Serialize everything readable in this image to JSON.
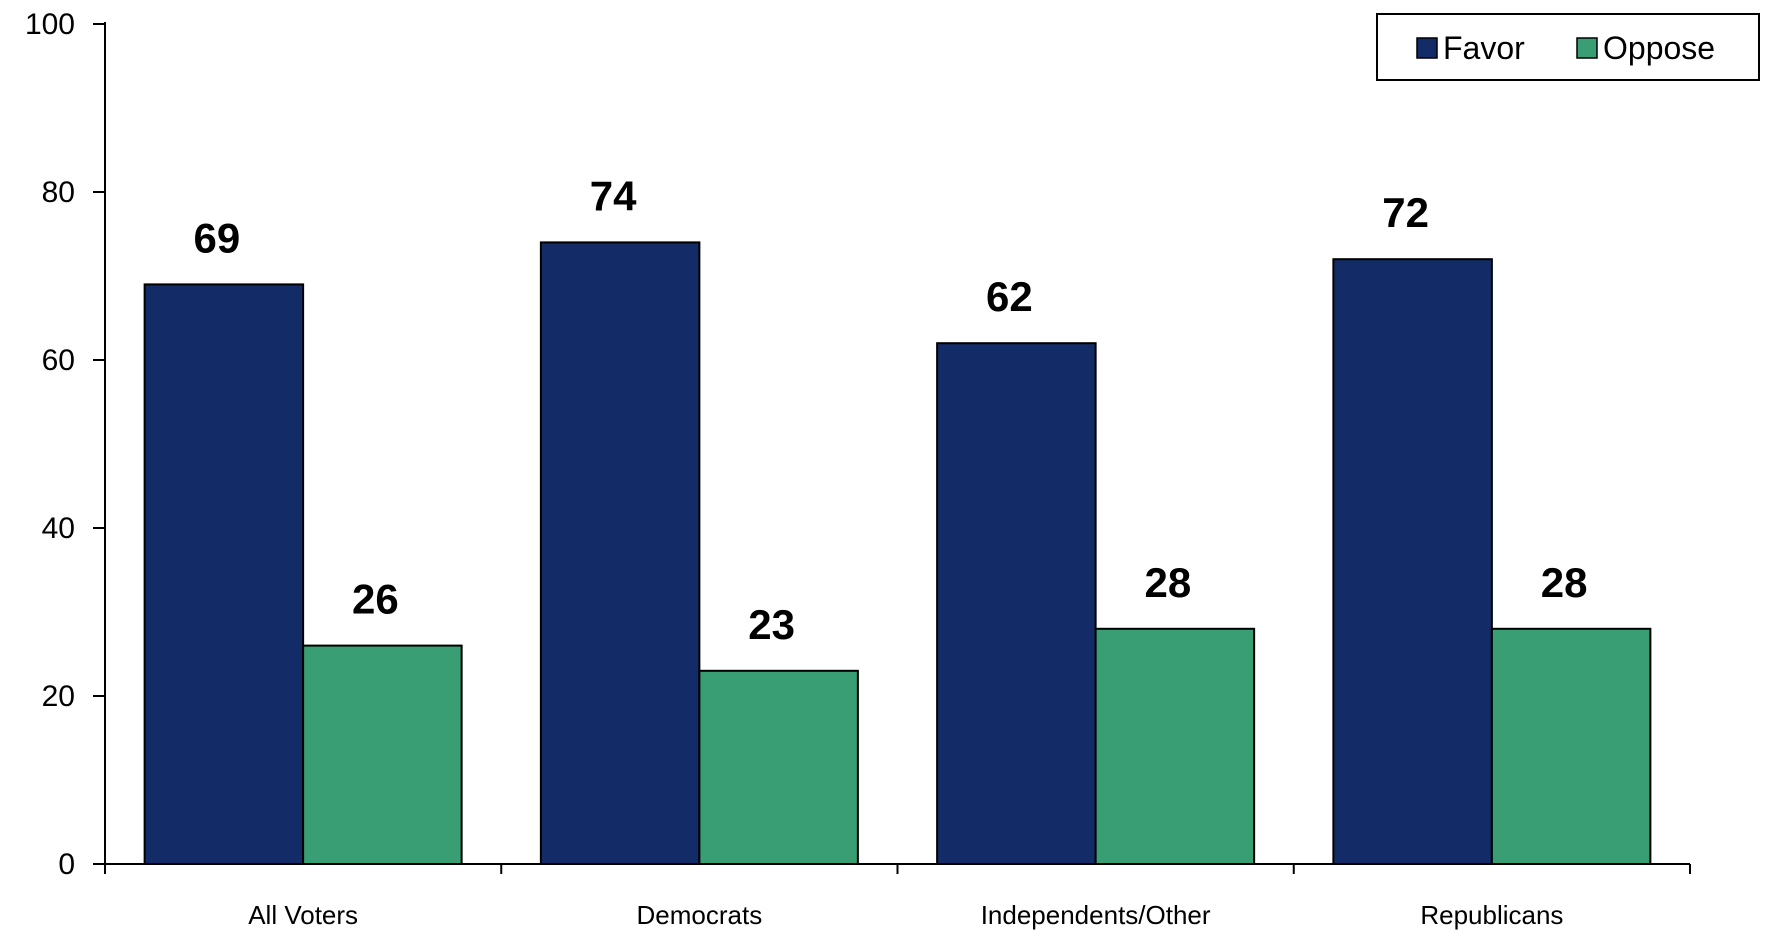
{
  "chart_data": {
    "type": "bar",
    "title": "",
    "xlabel": "",
    "ylabel": "",
    "categories": [
      "All Voters",
      "Democrats",
      "Independents/Other",
      "Republicans"
    ],
    "series": [
      {
        "name": "Favor",
        "color": "#132c67",
        "values": [
          69,
          74,
          62,
          72
        ]
      },
      {
        "name": "Oppose",
        "color": "#3a9e74",
        "values": [
          26,
          23,
          28,
          28
        ]
      }
    ],
    "ylim": [
      0,
      100
    ],
    "yticks": [
      0,
      20,
      40,
      60,
      80,
      100
    ],
    "grid": false,
    "legend_position": "top-right"
  }
}
